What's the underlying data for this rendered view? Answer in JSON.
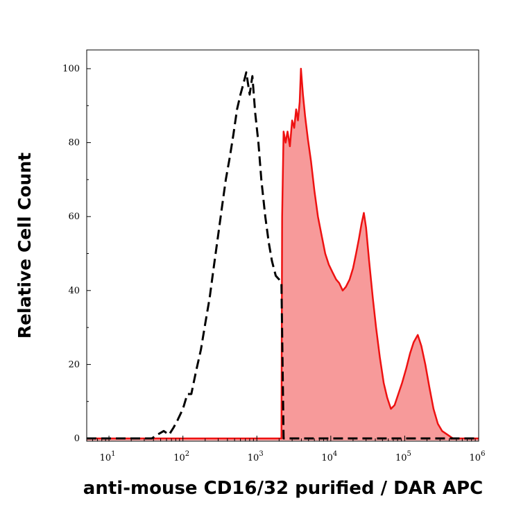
{
  "chart_data": {
    "type": "area",
    "title": "",
    "xlabel": "anti-mouse CD16/32 purified / DAR APC",
    "ylabel": "Relative Cell Count",
    "x_scale": "log",
    "xlim": [
      5,
      1000000
    ],
    "ylim": [
      0,
      105
    ],
    "x_ticks": [
      {
        "base": "10",
        "exp": "1",
        "value": 10
      },
      {
        "base": "10",
        "exp": "2",
        "value": 100
      },
      {
        "base": "10",
        "exp": "3",
        "value": 1000
      },
      {
        "base": "10",
        "exp": "4",
        "value": 10000
      },
      {
        "base": "10",
        "exp": "5",
        "value": 100000
      },
      {
        "base": "10",
        "exp": "6",
        "value": 1000000
      }
    ],
    "y_ticks": [
      {
        "label": "0",
        "value": 0
      },
      {
        "label": "20",
        "value": 20
      },
      {
        "label": "40",
        "value": 40
      },
      {
        "label": "60",
        "value": 60
      },
      {
        "label": "80",
        "value": 80
      },
      {
        "label": "100",
        "value": 100
      }
    ],
    "grid": false,
    "legend": "none",
    "series": [
      {
        "style": "dashed",
        "color": "#000000",
        "fill": "none",
        "points": [
          [
            5,
            0
          ],
          [
            38,
            0
          ],
          [
            45,
            1
          ],
          [
            55,
            2
          ],
          [
            65,
            1
          ],
          [
            75,
            3
          ],
          [
            85,
            5
          ],
          [
            100,
            8
          ],
          [
            115,
            12
          ],
          [
            130,
            12
          ],
          [
            150,
            18
          ],
          [
            175,
            24
          ],
          [
            200,
            31
          ],
          [
            230,
            38
          ],
          [
            260,
            46
          ],
          [
            300,
            55
          ],
          [
            340,
            63
          ],
          [
            380,
            70
          ],
          [
            430,
            76
          ],
          [
            480,
            82
          ],
          [
            540,
            89
          ],
          [
            600,
            93
          ],
          [
            660,
            96
          ],
          [
            720,
            99
          ],
          [
            800,
            93
          ],
          [
            870,
            98
          ],
          [
            950,
            88
          ],
          [
            1050,
            80
          ],
          [
            1150,
            70
          ],
          [
            1300,
            60
          ],
          [
            1450,
            53
          ],
          [
            1600,
            48
          ],
          [
            1800,
            44
          ],
          [
            2000,
            43
          ],
          [
            2150,
            42
          ],
          [
            2300,
            0
          ],
          [
            1000000,
            0
          ]
        ]
      },
      {
        "style": "solid",
        "color": "#ee1111",
        "fill": "#f79a9a",
        "points": [
          [
            5,
            0
          ],
          [
            2150,
            0
          ],
          [
            2200,
            60
          ],
          [
            2300,
            83
          ],
          [
            2450,
            80
          ],
          [
            2600,
            83
          ],
          [
            2800,
            79
          ],
          [
            3000,
            86
          ],
          [
            3200,
            84
          ],
          [
            3400,
            89
          ],
          [
            3600,
            86
          ],
          [
            3800,
            91
          ],
          [
            3950,
            100
          ],
          [
            4200,
            93
          ],
          [
            4500,
            87
          ],
          [
            4900,
            81
          ],
          [
            5400,
            75
          ],
          [
            6000,
            67
          ],
          [
            6700,
            60
          ],
          [
            7500,
            55
          ],
          [
            8400,
            50
          ],
          [
            9400,
            47
          ],
          [
            10500,
            45
          ],
          [
            11800,
            43
          ],
          [
            13000,
            42
          ],
          [
            14500,
            40
          ],
          [
            16000,
            41
          ],
          [
            18000,
            43
          ],
          [
            20000,
            46
          ],
          [
            22000,
            50
          ],
          [
            24000,
            54
          ],
          [
            26000,
            58
          ],
          [
            28000,
            61
          ],
          [
            30000,
            57
          ],
          [
            33000,
            48
          ],
          [
            37000,
            38
          ],
          [
            41000,
            30
          ],
          [
            46000,
            22
          ],
          [
            52000,
            15
          ],
          [
            58000,
            11
          ],
          [
            65000,
            8
          ],
          [
            73000,
            9
          ],
          [
            82000,
            12
          ],
          [
            92000,
            15
          ],
          [
            105000,
            19
          ],
          [
            118000,
            23
          ],
          [
            132000,
            26
          ],
          [
            150000,
            28
          ],
          [
            168000,
            25
          ],
          [
            190000,
            20
          ],
          [
            215000,
            14
          ],
          [
            245000,
            8
          ],
          [
            280000,
            4
          ],
          [
            320000,
            2
          ],
          [
            380000,
            1
          ],
          [
            450000,
            0
          ],
          [
            1000000,
            0
          ]
        ]
      }
    ]
  }
}
